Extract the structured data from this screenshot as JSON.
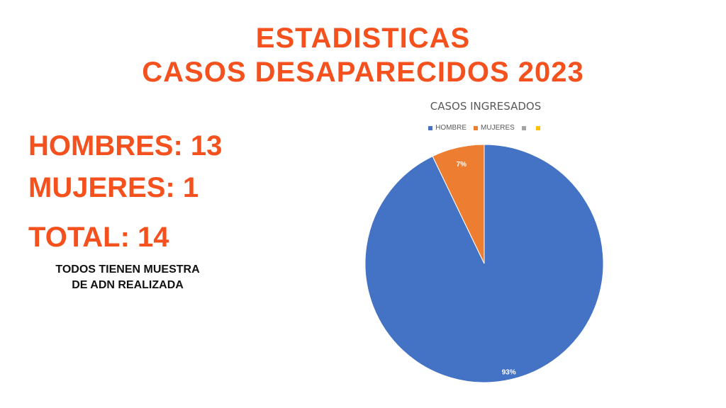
{
  "header": {
    "line1": "ESTADISTICAS",
    "line2": "CASOS DESAPARECIDOS 2023"
  },
  "stats": {
    "hombres": "HOMBRES: 13",
    "mujeres": "MUJERES: 1",
    "total": "TOTAL: 14"
  },
  "note": {
    "line1": "TODOS TIENEN MUESTRA",
    "line2": "DE ADN REALIZADA"
  },
  "chart_data": {
    "type": "pie",
    "title": "CASOS INGRESADOS",
    "categories": [
      "HOMBRE",
      "MUJERES",
      "",
      ""
    ],
    "values": [
      13,
      1,
      0,
      0
    ],
    "labels": [
      "93%",
      "7%",
      "",
      ""
    ],
    "colors": [
      "#4472c4",
      "#ed7d31",
      "#a5a5a5",
      "#ffc000"
    ],
    "legend_position": "top"
  }
}
